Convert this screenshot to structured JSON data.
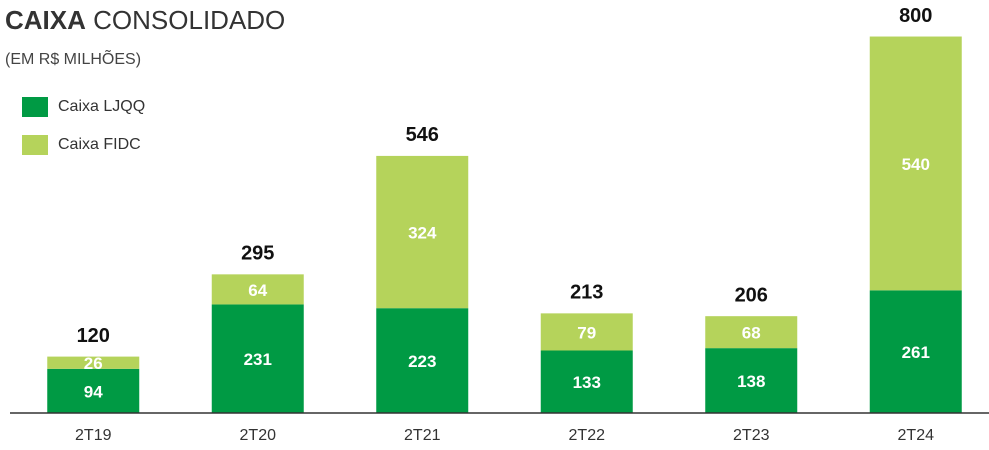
{
  "chart_data": {
    "type": "stacked_bar",
    "title": [
      "CAIXA",
      "CONSOLIDADO"
    ],
    "subtitle": "(EM R$ MILHÕES)",
    "categories": [
      "2T19",
      "2T20",
      "2T21",
      "2T22",
      "2T23",
      "2T24"
    ],
    "series": [
      {
        "name": "Caixa LJQQ",
        "color": "#009a44",
        "values": [
          94,
          231,
          223,
          133,
          138,
          261
        ]
      },
      {
        "name": "Caixa FIDC",
        "color": "#b5d35b",
        "values": [
          26,
          64,
          324,
          79,
          68,
          540
        ]
      }
    ],
    "totals": [
      120,
      295,
      546,
      213,
      206,
      800
    ],
    "ylim": [
      0,
      800
    ],
    "legend": "upper left"
  }
}
